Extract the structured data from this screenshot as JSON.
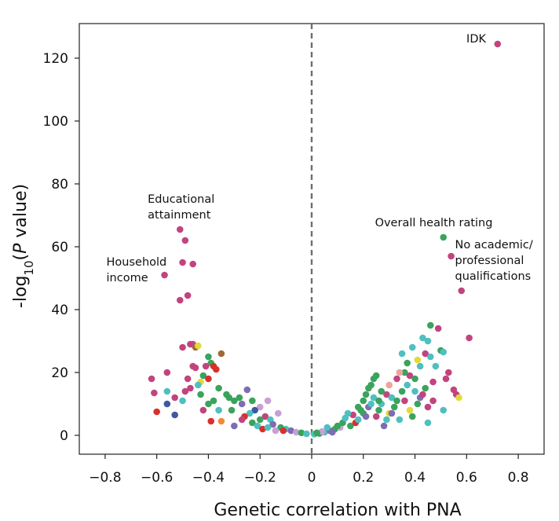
{
  "chart_data": {
    "type": "scatter",
    "title": "",
    "xlabel": "Genetic correlation with PNA",
    "ylabel_main": "-log",
    "ylabel_sub": "10",
    "ylabel_open": "(",
    "ylabel_italic": "P",
    "ylabel_rest": " value)",
    "xlim": [
      -0.9,
      0.9
    ],
    "ylim": [
      -6,
      131
    ],
    "x_ticks": [
      -0.8,
      -0.6,
      -0.4,
      -0.2,
      0,
      0.2,
      0.4,
      0.6,
      0.8
    ],
    "x_tick_labels": [
      "−0.8",
      "−0.6",
      "−0.4",
      "−0.2",
      "0",
      "0.2",
      "0.4",
      "0.6",
      "0.8"
    ],
    "y_ticks": [
      0,
      20,
      40,
      60,
      80,
      100,
      120
    ],
    "y_tick_labels": [
      "0",
      "20",
      "40",
      "60",
      "80",
      "100",
      "120"
    ],
    "reference_line_x": 0,
    "colors": {
      "magenta": "#c2447f",
      "green": "#3aa35c",
      "teal": "#4fbfbf",
      "purple": "#7e6cb4",
      "red": "#d9302b",
      "yellow": "#e4d93a",
      "lilac": "#c7a0d6",
      "blue": "#3f58a2",
      "orange": "#ef8a3a",
      "brown": "#9c6b3a",
      "pink": "#f0a39a"
    },
    "points": [
      {
        "x": 0.72,
        "y": 124.5,
        "c": "magenta"
      },
      {
        "x": 0.51,
        "y": 63,
        "c": "green"
      },
      {
        "x": 0.54,
        "y": 57,
        "c": "magenta"
      },
      {
        "x": 0.58,
        "y": 46,
        "c": "magenta"
      },
      {
        "x": 0.61,
        "y": 31,
        "c": "magenta"
      },
      {
        "x": -0.51,
        "y": 65.5,
        "c": "magenta"
      },
      {
        "x": -0.49,
        "y": 62,
        "c": "magenta"
      },
      {
        "x": -0.5,
        "y": 55,
        "c": "magenta"
      },
      {
        "x": -0.46,
        "y": 54.5,
        "c": "magenta"
      },
      {
        "x": -0.57,
        "y": 51,
        "c": "magenta"
      },
      {
        "x": -0.48,
        "y": 44.5,
        "c": "magenta"
      },
      {
        "x": -0.51,
        "y": 43,
        "c": "magenta"
      },
      {
        "x": -0.5,
        "y": 28,
        "c": "magenta"
      },
      {
        "x": -0.47,
        "y": 29,
        "c": "magenta"
      },
      {
        "x": -0.46,
        "y": 29,
        "c": "magenta"
      },
      {
        "x": -0.45,
        "y": 28,
        "c": "brown"
      },
      {
        "x": -0.44,
        "y": 28.5,
        "c": "yellow"
      },
      {
        "x": -0.35,
        "y": 26,
        "c": "brown"
      },
      {
        "x": -0.4,
        "y": 25,
        "c": "green"
      },
      {
        "x": -0.39,
        "y": 23,
        "c": "green"
      },
      {
        "x": -0.41,
        "y": 22,
        "c": "magenta"
      },
      {
        "x": -0.38,
        "y": 22,
        "c": "red"
      },
      {
        "x": -0.46,
        "y": 22,
        "c": "magenta"
      },
      {
        "x": -0.45,
        "y": 21.5,
        "c": "magenta"
      },
      {
        "x": -0.56,
        "y": 20,
        "c": "magenta"
      },
      {
        "x": -0.37,
        "y": 21,
        "c": "red"
      },
      {
        "x": -0.62,
        "y": 18,
        "c": "magenta"
      },
      {
        "x": -0.42,
        "y": 19,
        "c": "green"
      },
      {
        "x": -0.4,
        "y": 18,
        "c": "red"
      },
      {
        "x": -0.43,
        "y": 17,
        "c": "yellow"
      },
      {
        "x": -0.48,
        "y": 18,
        "c": "magenta"
      },
      {
        "x": -0.44,
        "y": 16,
        "c": "teal"
      },
      {
        "x": -0.36,
        "y": 15,
        "c": "green"
      },
      {
        "x": -0.49,
        "y": 14,
        "c": "magenta"
      },
      {
        "x": -0.47,
        "y": 15,
        "c": "magenta"
      },
      {
        "x": -0.56,
        "y": 14,
        "c": "teal"
      },
      {
        "x": -0.61,
        "y": 13.5,
        "c": "magenta"
      },
      {
        "x": -0.5,
        "y": 11,
        "c": "teal"
      },
      {
        "x": -0.53,
        "y": 12,
        "c": "magenta"
      },
      {
        "x": -0.43,
        "y": 13,
        "c": "green"
      },
      {
        "x": -0.25,
        "y": 14.5,
        "c": "purple"
      },
      {
        "x": -0.33,
        "y": 13,
        "c": "green"
      },
      {
        "x": -0.3,
        "y": 11,
        "c": "green"
      },
      {
        "x": -0.28,
        "y": 12,
        "c": "green"
      },
      {
        "x": -0.32,
        "y": 12,
        "c": "green"
      },
      {
        "x": -0.17,
        "y": 11,
        "c": "lilac"
      },
      {
        "x": -0.23,
        "y": 11,
        "c": "green"
      },
      {
        "x": -0.38,
        "y": 11,
        "c": "green"
      },
      {
        "x": -0.4,
        "y": 10,
        "c": "green"
      },
      {
        "x": -0.27,
        "y": 10,
        "c": "purple"
      },
      {
        "x": -0.42,
        "y": 8,
        "c": "magenta"
      },
      {
        "x": -0.56,
        "y": 10,
        "c": "blue"
      },
      {
        "x": -0.6,
        "y": 7.5,
        "c": "red"
      },
      {
        "x": -0.53,
        "y": 6.5,
        "c": "blue"
      },
      {
        "x": -0.36,
        "y": 8,
        "c": "teal"
      },
      {
        "x": -0.2,
        "y": 9,
        "c": "lilac"
      },
      {
        "x": -0.31,
        "y": 8,
        "c": "green"
      },
      {
        "x": -0.22,
        "y": 8,
        "c": "blue"
      },
      {
        "x": -0.24,
        "y": 7,
        "c": "teal"
      },
      {
        "x": -0.26,
        "y": 6,
        "c": "red"
      },
      {
        "x": -0.13,
        "y": 7,
        "c": "lilac"
      },
      {
        "x": -0.18,
        "y": 6,
        "c": "magenta"
      },
      {
        "x": -0.16,
        "y": 5,
        "c": "teal"
      },
      {
        "x": -0.2,
        "y": 5,
        "c": "green"
      },
      {
        "x": -0.35,
        "y": 4.5,
        "c": "orange"
      },
      {
        "x": -0.39,
        "y": 4.5,
        "c": "red"
      },
      {
        "x": -0.3,
        "y": 3,
        "c": "purple"
      },
      {
        "x": -0.23,
        "y": 4,
        "c": "green"
      },
      {
        "x": -0.21,
        "y": 3,
        "c": "teal"
      },
      {
        "x": -0.19,
        "y": 2,
        "c": "red"
      },
      {
        "x": -0.15,
        "y": 3.5,
        "c": "purple"
      },
      {
        "x": -0.12,
        "y": 2.5,
        "c": "green"
      },
      {
        "x": -0.1,
        "y": 2,
        "c": "teal"
      },
      {
        "x": -0.08,
        "y": 1.5,
        "c": "purple"
      },
      {
        "x": -0.06,
        "y": 1,
        "c": "lilac"
      },
      {
        "x": -0.04,
        "y": 0.8,
        "c": "green"
      },
      {
        "x": -0.02,
        "y": 0.5,
        "c": "teal"
      },
      {
        "x": -0.11,
        "y": 1.5,
        "c": "red"
      },
      {
        "x": -0.14,
        "y": 1.5,
        "c": "lilac"
      },
      {
        "x": -0.17,
        "y": 2.5,
        "c": "teal"
      },
      {
        "x": -0.27,
        "y": 5,
        "c": "magenta"
      },
      {
        "x": 0.01,
        "y": 0.4,
        "c": "teal"
      },
      {
        "x": 0.03,
        "y": 0.6,
        "c": "green"
      },
      {
        "x": 0.05,
        "y": 1,
        "c": "teal"
      },
      {
        "x": 0.07,
        "y": 1.5,
        "c": "purple"
      },
      {
        "x": 0.09,
        "y": 2,
        "c": "green"
      },
      {
        "x": 0.11,
        "y": 2.5,
        "c": "lilac"
      },
      {
        "x": 0.12,
        "y": 4,
        "c": "green"
      },
      {
        "x": 0.13,
        "y": 5.5,
        "c": "teal"
      },
      {
        "x": 0.15,
        "y": 3,
        "c": "green"
      },
      {
        "x": 0.16,
        "y": 6.5,
        "c": "magenta"
      },
      {
        "x": 0.17,
        "y": 4,
        "c": "red"
      },
      {
        "x": 0.18,
        "y": 5,
        "c": "teal"
      },
      {
        "x": 0.19,
        "y": 8,
        "c": "green"
      },
      {
        "x": 0.2,
        "y": 7,
        "c": "green"
      },
      {
        "x": 0.2,
        "y": 11,
        "c": "green"
      },
      {
        "x": 0.21,
        "y": 13,
        "c": "green"
      },
      {
        "x": 0.22,
        "y": 9,
        "c": "purple"
      },
      {
        "x": 0.22,
        "y": 15,
        "c": "green"
      },
      {
        "x": 0.23,
        "y": 16,
        "c": "green"
      },
      {
        "x": 0.24,
        "y": 12,
        "c": "teal"
      },
      {
        "x": 0.24,
        "y": 18,
        "c": "green"
      },
      {
        "x": 0.25,
        "y": 19,
        "c": "green"
      },
      {
        "x": 0.25,
        "y": 6,
        "c": "magenta"
      },
      {
        "x": 0.26,
        "y": 8,
        "c": "green"
      },
      {
        "x": 0.27,
        "y": 10,
        "c": "teal"
      },
      {
        "x": 0.28,
        "y": 3,
        "c": "purple"
      },
      {
        "x": 0.29,
        "y": 13,
        "c": "magenta"
      },
      {
        "x": 0.3,
        "y": 7,
        "c": "yellow"
      },
      {
        "x": 0.3,
        "y": 16,
        "c": "pink"
      },
      {
        "x": 0.31,
        "y": 12,
        "c": "teal"
      },
      {
        "x": 0.32,
        "y": 9,
        "c": "green"
      },
      {
        "x": 0.33,
        "y": 18,
        "c": "magenta"
      },
      {
        "x": 0.34,
        "y": 5,
        "c": "teal"
      },
      {
        "x": 0.35,
        "y": 14,
        "c": "green"
      },
      {
        "x": 0.36,
        "y": 20,
        "c": "green"
      },
      {
        "x": 0.36,
        "y": 11,
        "c": "magenta"
      },
      {
        "x": 0.37,
        "y": 16,
        "c": "teal"
      },
      {
        "x": 0.38,
        "y": 19,
        "c": "magenta"
      },
      {
        "x": 0.38,
        "y": 8,
        "c": "yellow"
      },
      {
        "x": 0.39,
        "y": 6,
        "c": "green"
      },
      {
        "x": 0.4,
        "y": 14,
        "c": "teal"
      },
      {
        "x": 0.4,
        "y": 18,
        "c": "green"
      },
      {
        "x": 0.41,
        "y": 10,
        "c": "green"
      },
      {
        "x": 0.42,
        "y": 22,
        "c": "teal"
      },
      {
        "x": 0.42,
        "y": 12,
        "c": "purple"
      },
      {
        "x": 0.43,
        "y": 31,
        "c": "teal"
      },
      {
        "x": 0.44,
        "y": 26,
        "c": "magenta"
      },
      {
        "x": 0.44,
        "y": 15,
        "c": "green"
      },
      {
        "x": 0.45,
        "y": 30,
        "c": "teal"
      },
      {
        "x": 0.45,
        "y": 9,
        "c": "magenta"
      },
      {
        "x": 0.46,
        "y": 35,
        "c": "green"
      },
      {
        "x": 0.46,
        "y": 25,
        "c": "teal"
      },
      {
        "x": 0.47,
        "y": 17,
        "c": "magenta"
      },
      {
        "x": 0.48,
        "y": 22,
        "c": "teal"
      },
      {
        "x": 0.49,
        "y": 34,
        "c": "magenta"
      },
      {
        "x": 0.5,
        "y": 27,
        "c": "green"
      },
      {
        "x": 0.51,
        "y": 26.5,
        "c": "teal"
      },
      {
        "x": 0.52,
        "y": 18,
        "c": "magenta"
      },
      {
        "x": 0.53,
        "y": 20,
        "c": "magenta"
      },
      {
        "x": 0.55,
        "y": 14.5,
        "c": "magenta"
      },
      {
        "x": 0.56,
        "y": 13,
        "c": "magenta"
      },
      {
        "x": 0.57,
        "y": 12,
        "c": "yellow"
      },
      {
        "x": 0.51,
        "y": 8,
        "c": "teal"
      },
      {
        "x": 0.47,
        "y": 11,
        "c": "magenta"
      },
      {
        "x": 0.45,
        "y": 4,
        "c": "teal"
      },
      {
        "x": 0.43,
        "y": 13,
        "c": "magenta"
      },
      {
        "x": 0.41,
        "y": 24,
        "c": "yellow"
      },
      {
        "x": 0.39,
        "y": 28,
        "c": "teal"
      },
      {
        "x": 0.37,
        "y": 23,
        "c": "green"
      },
      {
        "x": 0.35,
        "y": 26,
        "c": "teal"
      },
      {
        "x": 0.34,
        "y": 20,
        "c": "pink"
      },
      {
        "x": 0.33,
        "y": 11,
        "c": "green"
      },
      {
        "x": 0.31,
        "y": 7,
        "c": "purple"
      },
      {
        "x": 0.29,
        "y": 5,
        "c": "teal"
      },
      {
        "x": 0.27,
        "y": 14,
        "c": "green"
      },
      {
        "x": 0.26,
        "y": 11,
        "c": "green"
      },
      {
        "x": 0.23,
        "y": 10,
        "c": "teal"
      },
      {
        "x": 0.21,
        "y": 6,
        "c": "purple"
      },
      {
        "x": 0.18,
        "y": 9,
        "c": "green"
      },
      {
        "x": 0.14,
        "y": 7,
        "c": "teal"
      },
      {
        "x": 0.1,
        "y": 3,
        "c": "green"
      },
      {
        "x": 0.08,
        "y": 1,
        "c": "purple"
      },
      {
        "x": 0.06,
        "y": 2.5,
        "c": "teal"
      },
      {
        "x": 0.04,
        "y": 1.2,
        "c": "lilac"
      },
      {
        "x": 0.02,
        "y": 0.8,
        "c": "green"
      }
    ],
    "annotations": [
      {
        "lines": [
          "IDK"
        ],
        "anchor": "end",
        "x": 0.675,
        "y": 125
      },
      {
        "lines": [
          "Overall health rating"
        ],
        "anchor": "start",
        "x": 0.245,
        "y": 66.5
      },
      {
        "lines": [
          "No academic/",
          "professional",
          "qualifications"
        ],
        "anchor": "start",
        "x": 0.555,
        "y": 59.5
      },
      {
        "lines": [
          "Educational",
          "attainment"
        ],
        "anchor": "start",
        "x": -0.635,
        "y": 74
      },
      {
        "lines": [
          "Household",
          "income"
        ],
        "anchor": "start",
        "x": -0.795,
        "y": 54
      }
    ]
  }
}
